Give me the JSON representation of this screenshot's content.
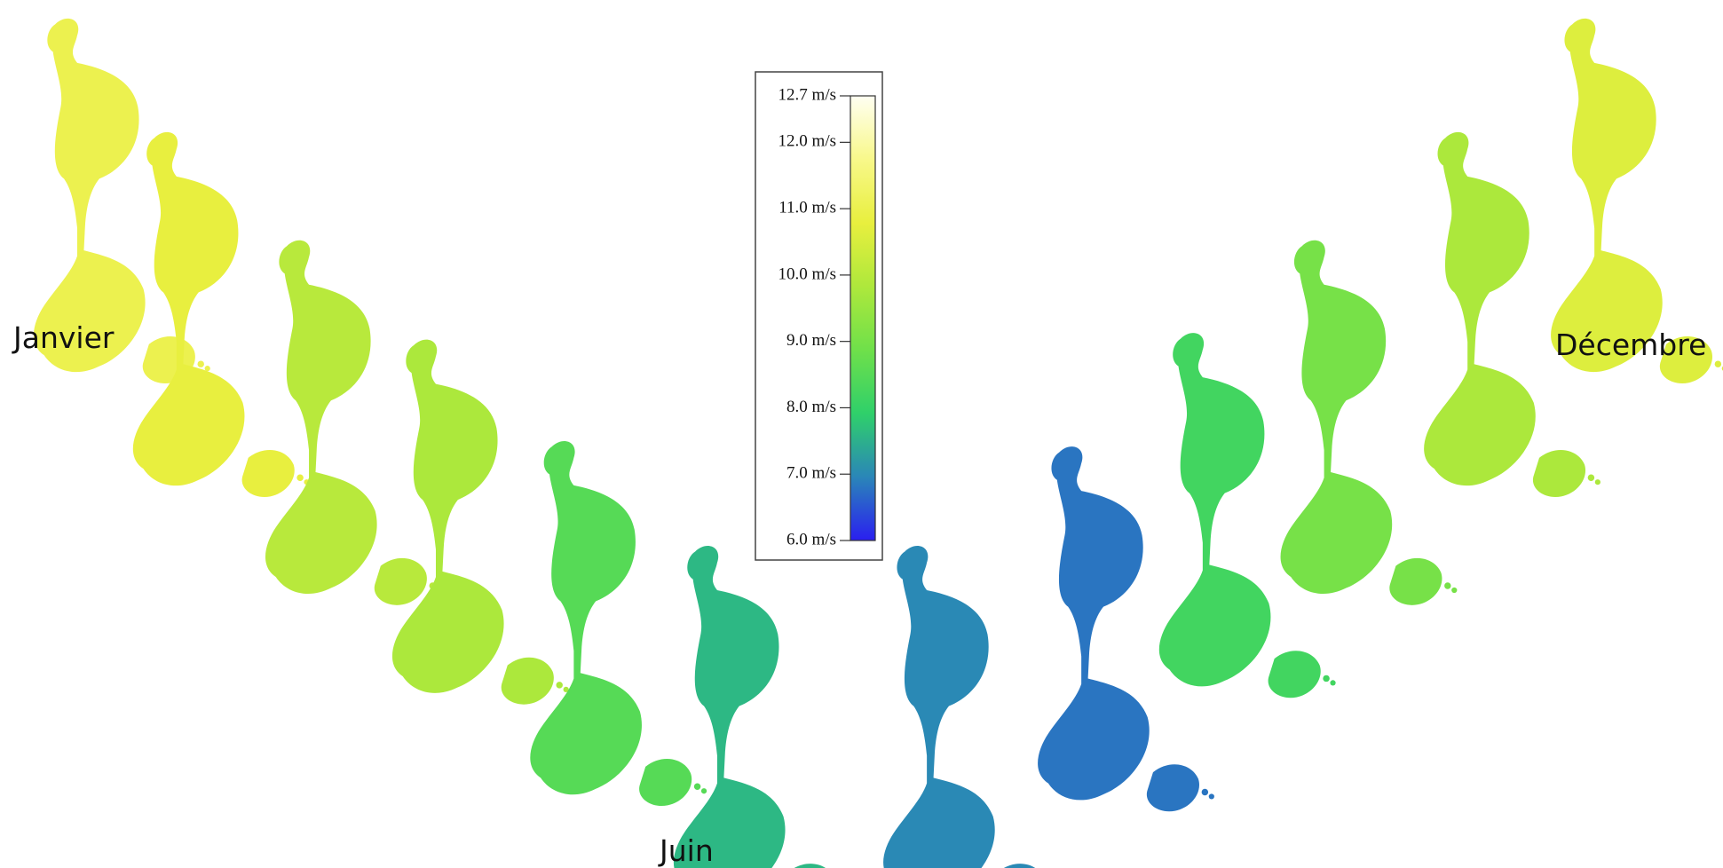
{
  "labels": [
    "Janvier",
    "Juin",
    "Décembre"
  ],
  "maps": [
    11.0,
    10.8,
    10.0,
    9.8,
    8.5,
    7.6,
    7.0,
    6.8,
    8.2,
    9.0,
    9.8,
    10.6
  ],
  "colorbar": {
    "range": [
      6.0,
      12.7
    ],
    "colors": [
      "#2a1ff0",
      "#2a86b8",
      "#2fd06a",
      "#6fe04a",
      "#aee83c",
      "#e8ef3e",
      "#f8f88a",
      "#fffff2"
    ],
    "ticks": [
      {
        "value": 12.7,
        "label": "12.7 m/s"
      },
      {
        "value": 12.0,
        "label": "12.0 m/s"
      },
      {
        "value": 11.0,
        "label": "11.0 m/s"
      },
      {
        "value": 10.0,
        "label": "10.0 m/s"
      },
      {
        "value": 9.0,
        "label": "9.0 m/s"
      },
      {
        "value": 8.0,
        "label": "8.0 m/s"
      },
      {
        "value": 7.0,
        "label": "7.0 m/s"
      },
      {
        "value": 6.0,
        "label": "6.0 m/s"
      }
    ]
  }
}
